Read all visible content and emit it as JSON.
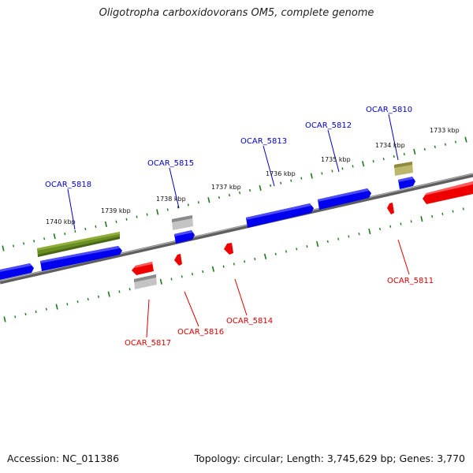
{
  "title": "Oligotropha carboxidovorans OM5, complete genome",
  "footer": {
    "accession": "Accession: NC_011386",
    "summary": "Topology: circular; Length: 3,745,629 bp; Genes: 3,770"
  },
  "colors": {
    "forward_label": "#0000cc",
    "reverse_label": "#dd0000",
    "tick": "#1a7a1a",
    "backbone": "#808080",
    "blue_gene": "#0000ee",
    "red_gene": "#ee0000",
    "gray_gene": "#b8b8b8",
    "olive_gene": "#6b8e23",
    "khaki_gene": "#bdb76b"
  },
  "kbp_labels": [
    "1733 kbp",
    "1734 kbp",
    "1735 kbp",
    "1736 kbp",
    "1737 kbp",
    "1738 kbp",
    "1739 kbp",
    "1740 kbp"
  ],
  "forward_labels": [
    "OCAR_5810",
    "OCAR_5812",
    "OCAR_5813",
    "OCAR_5815",
    "OCAR_5818"
  ],
  "reverse_labels": [
    "OCAR_5811",
    "OCAR_5814",
    "OCAR_5816",
    "OCAR_5817"
  ]
}
